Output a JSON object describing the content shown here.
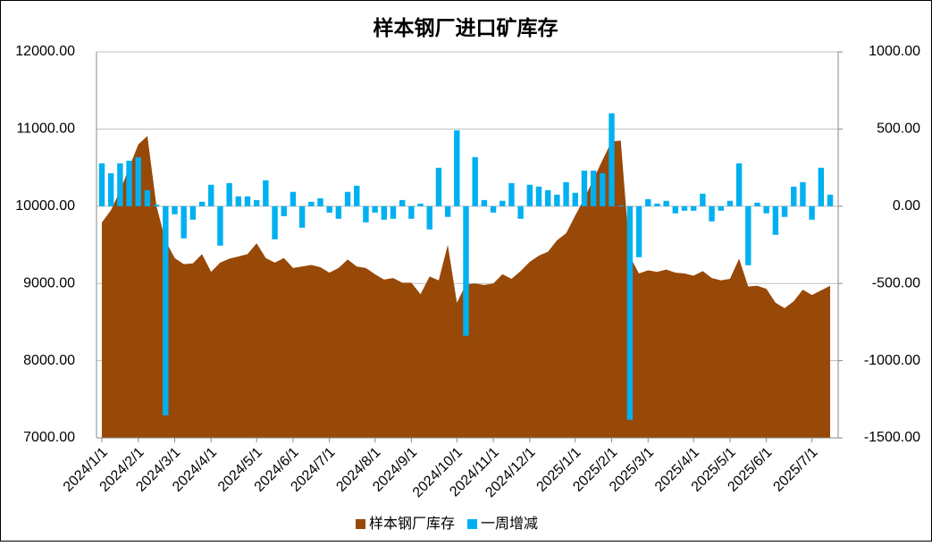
{
  "chart_data": {
    "type": "area",
    "title": "样本钢厂进口矿库存",
    "categories": [
      "2024/1/1",
      null,
      null,
      null,
      "2024/2/1",
      null,
      null,
      null,
      "2024/3/1",
      null,
      null,
      null,
      "2024/4/1",
      null,
      null,
      null,
      null,
      "2024/5/1",
      null,
      null,
      null,
      "2024/6/1",
      null,
      null,
      null,
      "2024/7/1",
      null,
      null,
      null,
      null,
      "2024/8/1",
      null,
      null,
      null,
      "2024/9/1",
      null,
      null,
      null,
      null,
      "2024/10/1",
      null,
      null,
      null,
      "2024/11/1",
      null,
      null,
      null,
      "2024/12/1",
      null,
      null,
      null,
      null,
      "2025/1/1",
      null,
      null,
      null,
      "2025/2/1",
      null,
      null,
      null,
      "2025/3/1",
      null,
      null,
      null,
      null,
      "2025/4/1",
      null,
      null,
      null,
      "2025/5/1",
      null,
      null,
      null,
      "2025/6/1",
      null,
      null,
      null,
      null,
      "2025/7/1",
      null,
      null
    ],
    "series": [
      {
        "name": "样本钢厂库存",
        "type": "area",
        "color": "#984807",
        "values": [
          9790,
          9950,
          10200,
          10500,
          10800,
          10910,
          10000,
          9550,
          9330,
          9250,
          9260,
          9380,
          9150,
          9270,
          9320,
          9350,
          9380,
          9520,
          9330,
          9270,
          9330,
          9200,
          9220,
          9240,
          9210,
          9140,
          9200,
          9310,
          9220,
          9200,
          9120,
          9050,
          9070,
          9010,
          9010,
          8860,
          9090,
          9040,
          9500,
          8750,
          8990,
          9000,
          8980,
          9000,
          9120,
          9060,
          9160,
          9280,
          9360,
          9410,
          9560,
          9650,
          9880,
          10100,
          10350,
          10600,
          10840,
          10850,
          9350,
          9130,
          9170,
          9150,
          9180,
          9140,
          9130,
          9100,
          9160,
          9070,
          9040,
          9060,
          9320,
          8960,
          8970,
          8930,
          8750,
          8680,
          8770,
          8920,
          8850,
          8910,
          8970
        ]
      },
      {
        "name": "一周增减",
        "type": "bar",
        "axis": "y2",
        "color": "#00B0F0",
        "values": [
          278,
          214,
          278,
          295,
          318,
          104,
          10,
          -1354,
          -52,
          -208,
          -87,
          29,
          139,
          -255,
          150,
          64,
          64,
          40,
          168,
          -214,
          -64,
          93,
          -139,
          29,
          52,
          -41,
          -81,
          93,
          133,
          -104,
          -41,
          -87,
          -81,
          40,
          -81,
          17,
          -150,
          249,
          -69,
          492,
          -839,
          318,
          40,
          -41,
          35,
          150,
          -81,
          139,
          127,
          104,
          75,
          156,
          87,
          231,
          231,
          214,
          602,
          5,
          -1383,
          -330,
          46,
          17,
          35,
          -46,
          -29,
          -29,
          81,
          -98,
          -29,
          35,
          278,
          -382,
          23,
          -46,
          -185,
          -69,
          127,
          156,
          -87,
          249,
          75
        ]
      }
    ],
    "ylim": [
      7000,
      12000
    ],
    "yticks": [
      {
        "value": 7000,
        "label": "7000.00"
      },
      {
        "value": 8000,
        "label": "8000.00"
      },
      {
        "value": 9000,
        "label": "9000.00"
      },
      {
        "value": 10000,
        "label": "10000.00"
      },
      {
        "value": 11000,
        "label": "11000.00"
      },
      {
        "value": 12000,
        "label": "12000.00"
      }
    ],
    "y2lim": [
      -1500,
      1000
    ],
    "y2ticks": [
      {
        "value": -1500,
        "label": "-1500.00"
      },
      {
        "value": -1000,
        "label": "-1000.00"
      },
      {
        "value": -500,
        "label": "-500.00"
      },
      {
        "value": 0,
        "label": "0.00"
      },
      {
        "value": 500,
        "label": "500.00"
      },
      {
        "value": 1000,
        "label": "1000.00"
      }
    ],
    "grid": true,
    "legend": "bottom"
  }
}
